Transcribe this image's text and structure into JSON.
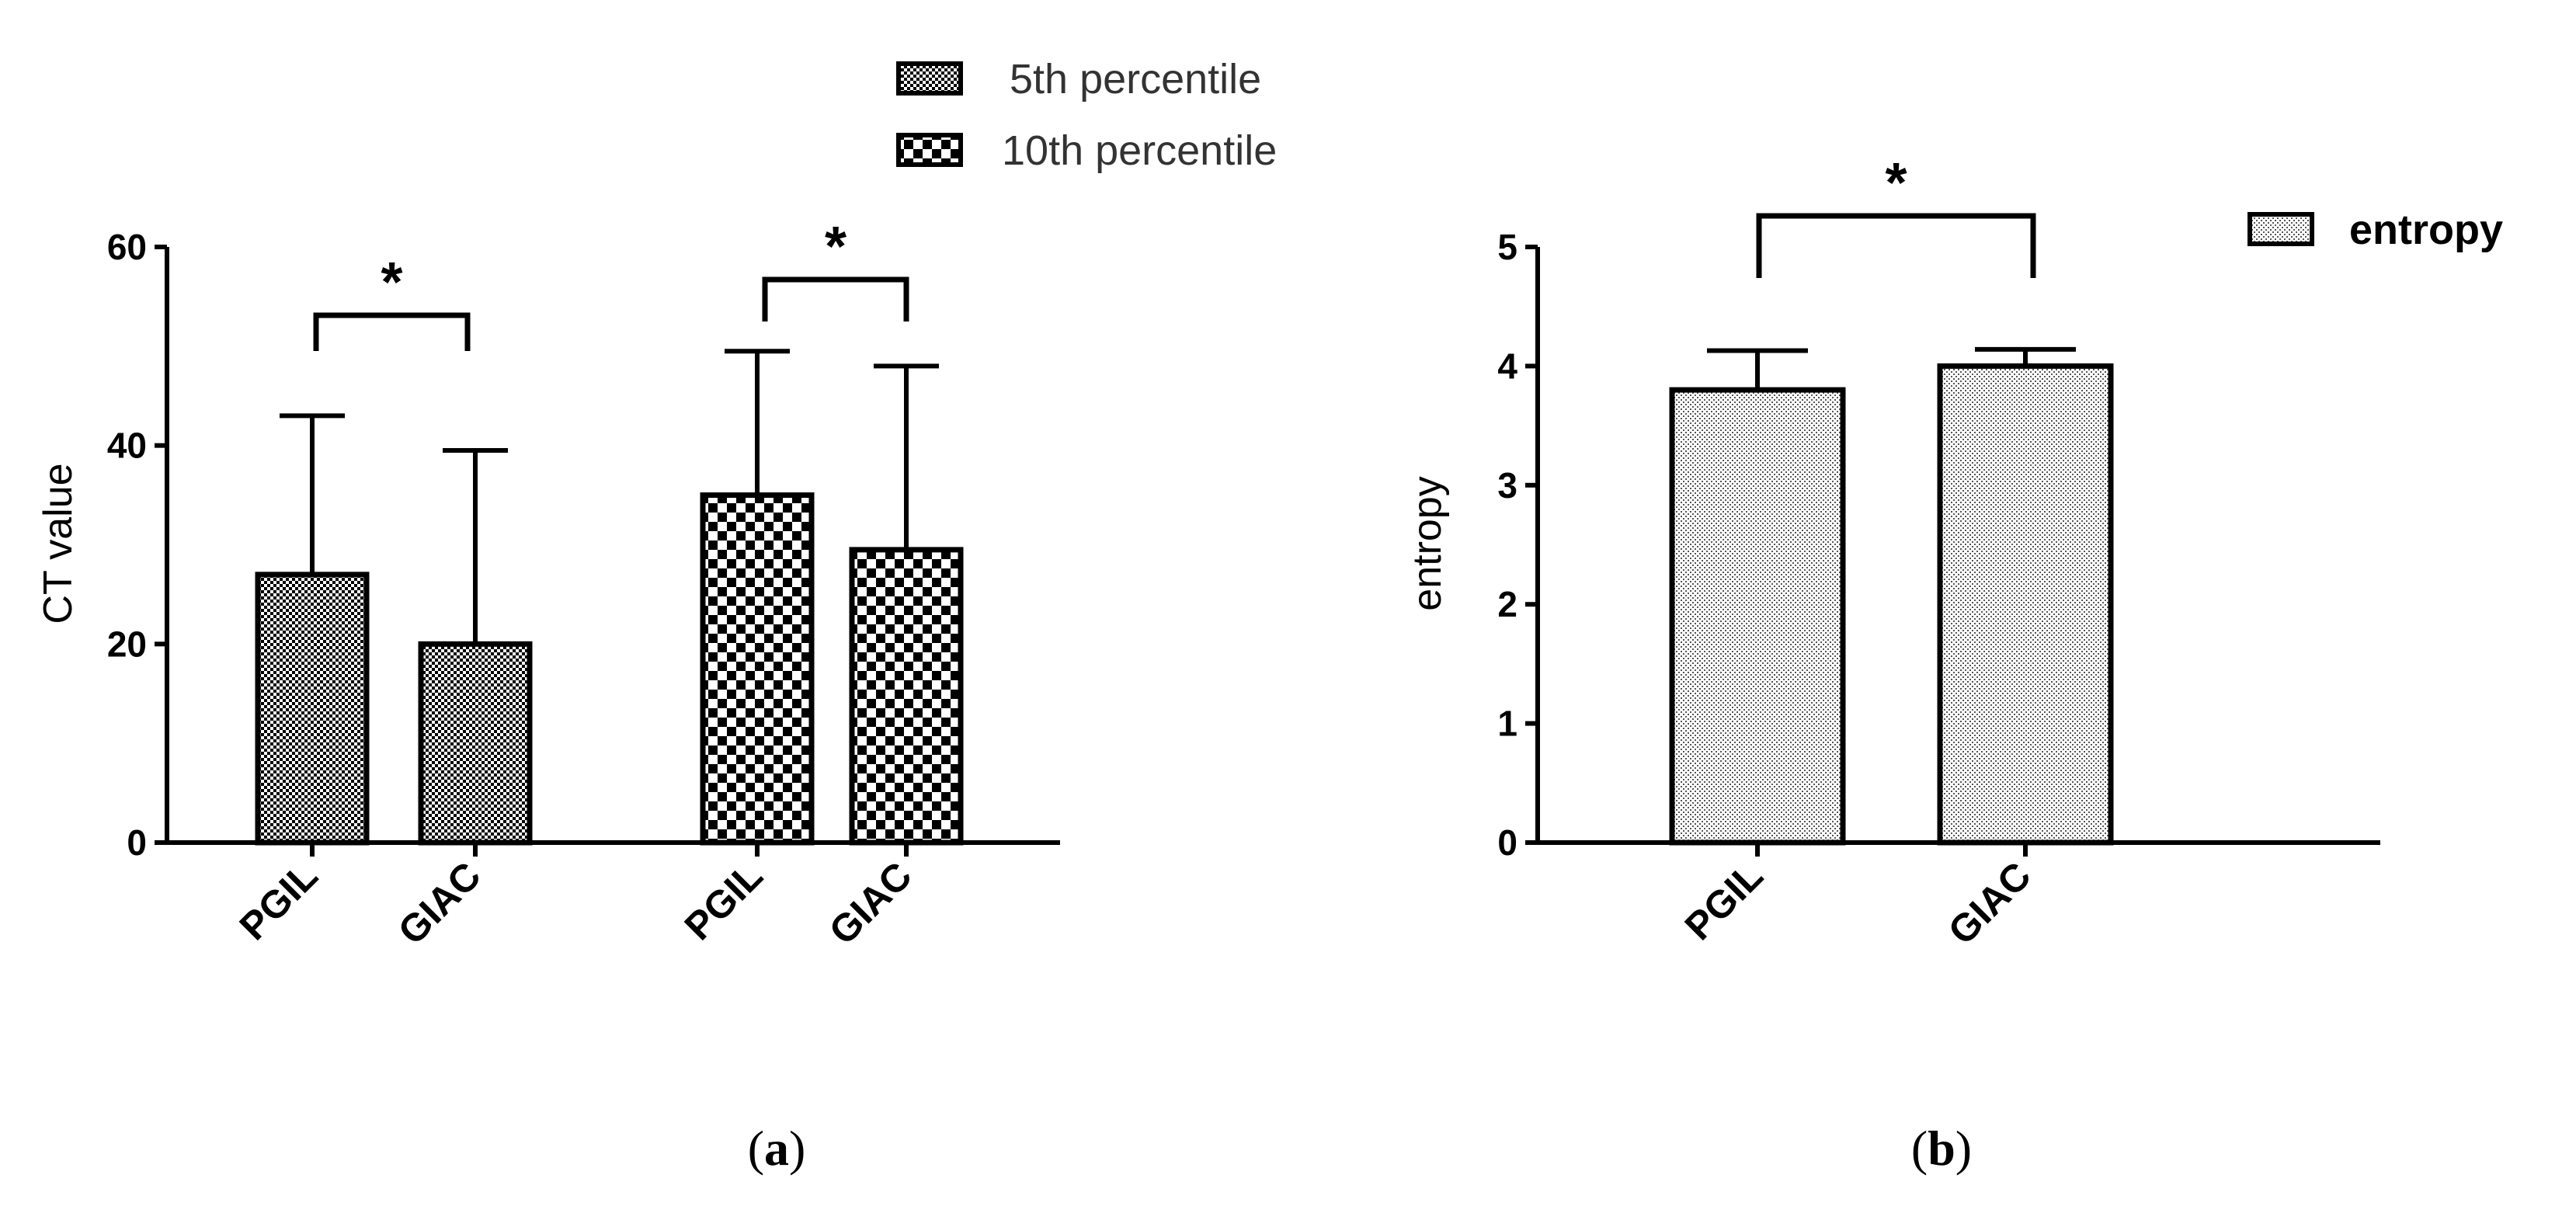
{
  "chart_data": [
    {
      "type": "bar",
      "panel": "a",
      "ylabel": "CT value",
      "ylim": [
        0,
        60
      ],
      "yticks": [
        0,
        20,
        40,
        60
      ],
      "legend": [
        "5th percentile",
        "10th percentile"
      ],
      "series": [
        {
          "name": "5th percentile",
          "categories": [
            "PGIL",
            "GIAC"
          ],
          "values": [
            27,
            20
          ],
          "errors": [
            16,
            19.5
          ]
        },
        {
          "name": "10th percentile",
          "categories": [
            "PGIL",
            "GIAC"
          ],
          "values": [
            35,
            29.5
          ],
          "errors": [
            14.5,
            18.5
          ]
        }
      ],
      "annotations": [
        "*",
        "*"
      ]
    },
    {
      "type": "bar",
      "panel": "b",
      "ylabel": "entropy",
      "ylim": [
        0,
        5
      ],
      "yticks": [
        0,
        1,
        2,
        3,
        4,
        5
      ],
      "legend": [
        "entropy"
      ],
      "series": [
        {
          "name": "entropy",
          "categories": [
            "PGIL",
            "GIAC"
          ],
          "values": [
            3.8,
            4.0
          ],
          "errors": [
            0.33,
            0.14
          ]
        }
      ],
      "annotations": [
        "*"
      ]
    }
  ],
  "labels": {
    "a_open": "(",
    "a_letter": "a",
    "a_close": ")",
    "b_open": "(",
    "b_letter": "b",
    "b_close": ")"
  }
}
